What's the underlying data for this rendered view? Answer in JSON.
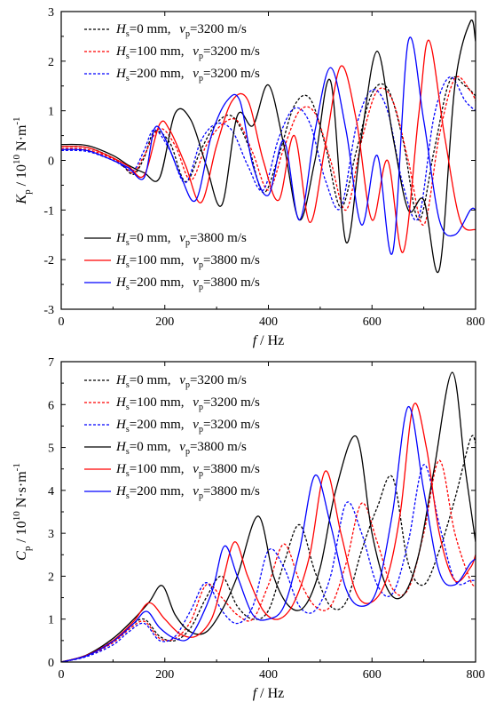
{
  "chart_data": [
    {
      "type": "line",
      "xlabel": "f / Hz",
      "ylabel": "K_p / 10^10 N·m^-1",
      "xlim": [
        0,
        800
      ],
      "ylim": [
        -3,
        3
      ],
      "xticks": [
        "0",
        "200",
        "400",
        "600",
        "800"
      ],
      "yticks": [
        "-3",
        "-2",
        "-1",
        "0",
        "1",
        "2",
        "3"
      ],
      "grid": false,
      "legend": [
        "top-left",
        "bottom-left"
      ],
      "series": [
        {
          "name": "H_s=0 mm, v_p=3200 m/s",
          "color": "#000000",
          "dash": "dashed",
          "x": [
            0,
            50,
            100,
            120,
            140,
            160,
            180,
            210,
            240,
            270,
            300,
            330,
            360,
            390,
            420,
            450,
            480,
            510,
            540,
            570,
            600,
            630,
            660,
            690,
            720,
            750,
            780,
            800
          ],
          "y": [
            0.28,
            0.26,
            0.05,
            -0.12,
            -0.28,
            0.05,
            0.58,
            0.35,
            -0.43,
            0.22,
            0.75,
            0.89,
            0.33,
            -0.65,
            0.1,
            1.1,
            1.25,
            0.3,
            -0.95,
            0.2,
            1.35,
            1.45,
            0.4,
            -1.2,
            0.2,
            1.6,
            1.5,
            1.3
          ]
        },
        {
          "name": "H_s=100 mm, v_p=3200 m/s",
          "color": "#ff0000",
          "dash": "dashed",
          "x": [
            0,
            50,
            100,
            120,
            140,
            160,
            190,
            220,
            250,
            280,
            310,
            340,
            370,
            400,
            430,
            460,
            490,
            520,
            550,
            580,
            610,
            640,
            670,
            700,
            730,
            760,
            790,
            800
          ],
          "y": [
            0.24,
            0.22,
            0.03,
            -0.1,
            -0.25,
            0.1,
            0.64,
            0.3,
            -0.4,
            0.3,
            0.72,
            0.8,
            0.15,
            -0.6,
            0.25,
            1.0,
            0.95,
            0.0,
            -1.0,
            0.4,
            1.4,
            1.2,
            0.0,
            -1.3,
            0.5,
            1.65,
            1.4,
            1.2
          ]
        },
        {
          "name": "H_s=200 mm, v_p=3200 m/s",
          "color": "#0000ff",
          "dash": "dashed",
          "x": [
            0,
            50,
            100,
            120,
            140,
            160,
            180,
            210,
            240,
            270,
            300,
            330,
            360,
            390,
            420,
            450,
            480,
            510,
            540,
            570,
            600,
            630,
            660,
            690,
            720,
            750,
            780,
            800
          ],
          "y": [
            0.2,
            0.18,
            0.0,
            -0.12,
            -0.2,
            0.2,
            0.62,
            0.2,
            -0.45,
            0.4,
            0.74,
            0.6,
            -0.1,
            -0.6,
            0.45,
            1.05,
            0.75,
            -0.4,
            -0.95,
            0.7,
            1.42,
            1.0,
            -0.5,
            -1.15,
            0.9,
            1.68,
            1.2,
            1.0
          ]
        },
        {
          "name": "H_s=0 mm, v_p=3800 m/s",
          "color": "#000000",
          "dash": "solid",
          "x": [
            0,
            50,
            100,
            130,
            160,
            190,
            220,
            250,
            280,
            310,
            340,
            370,
            400,
            430,
            460,
            490,
            520,
            550,
            580,
            610,
            640,
            670,
            700,
            730,
            760,
            790,
            800
          ],
          "y": [
            0.32,
            0.3,
            0.1,
            -0.1,
            -0.25,
            -0.35,
            0.95,
            0.82,
            -0.1,
            -0.9,
            0.9,
            0.7,
            1.52,
            0.3,
            -1.2,
            0.0,
            1.6,
            -1.65,
            0.5,
            2.2,
            0.5,
            -1.0,
            -0.8,
            -2.2,
            1.5,
            2.8,
            2.4
          ]
        },
        {
          "name": "H_s=100 mm, v_p=3800 m/s",
          "color": "#ff0000",
          "dash": "solid",
          "x": [
            0,
            50,
            100,
            130,
            160,
            190,
            210,
            240,
            270,
            300,
            330,
            360,
            390,
            420,
            450,
            480,
            510,
            540,
            570,
            600,
            630,
            660,
            690,
            710,
            740,
            770,
            800
          ],
          "y": [
            0.28,
            0.26,
            0.05,
            -0.12,
            -0.3,
            0.73,
            0.6,
            -0.1,
            -0.85,
            0.3,
            1.2,
            1.22,
            0.0,
            -0.8,
            0.5,
            -1.25,
            0.3,
            1.9,
            0.8,
            -1.2,
            0.0,
            -1.85,
            0.9,
            2.42,
            0.5,
            -1.2,
            -1.4
          ]
        },
        {
          "name": "H_s=200 mm, v_p=3800 m/s",
          "color": "#0000ff",
          "dash": "solid",
          "x": [
            0,
            50,
            100,
            130,
            160,
            180,
            200,
            230,
            260,
            290,
            320,
            345,
            370,
            400,
            430,
            460,
            490,
            520,
            550,
            580,
            610,
            640,
            670,
            700,
            730,
            760,
            790,
            800
          ],
          "y": [
            0.22,
            0.2,
            0.0,
            -0.15,
            -0.35,
            0.64,
            0.45,
            -0.3,
            -0.8,
            0.5,
            1.2,
            1.2,
            -0.1,
            -0.7,
            0.4,
            -1.2,
            0.6,
            1.87,
            0.6,
            -1.3,
            0.1,
            -1.85,
            2.4,
            0.8,
            -1.2,
            -1.5,
            -1.0,
            -1.0
          ]
        }
      ]
    },
    {
      "type": "line",
      "xlabel": "f / Hz",
      "ylabel": "C_p / 10^10 N·s·m^-1",
      "xlim": [
        0,
        800
      ],
      "ylim": [
        0,
        7
      ],
      "xticks": [
        "0",
        "200",
        "400",
        "600",
        "800"
      ],
      "yticks": [
        "0",
        "1",
        "2",
        "3",
        "4",
        "5",
        "6",
        "7"
      ],
      "grid": false,
      "legend": "top-left",
      "series": [
        {
          "name": "H_s=0 mm, v_p=3200 m/s",
          "color": "#000000",
          "dash": "dashed",
          "x": [
            0,
            50,
            100,
            130,
            160,
            190,
            220,
            250,
            280,
            310,
            340,
            370,
            400,
            430,
            460,
            490,
            520,
            550,
            580,
            610,
            640,
            670,
            700,
            730,
            760,
            790,
            800
          ],
          "y": [
            0.0,
            0.15,
            0.5,
            0.8,
            1.0,
            0.6,
            0.5,
            0.8,
            1.5,
            2.0,
            1.3,
            1.0,
            1.2,
            2.3,
            3.2,
            2.1,
            1.3,
            1.4,
            2.6,
            3.6,
            4.3,
            2.3,
            1.8,
            2.6,
            3.8,
            5.2,
            5.1
          ]
        },
        {
          "name": "H_s=100 mm, v_p=3200 m/s",
          "color": "#ff0000",
          "dash": "dashed",
          "x": [
            0,
            50,
            100,
            130,
            160,
            190,
            220,
            250,
            280,
            310,
            340,
            370,
            400,
            430,
            460,
            490,
            520,
            550,
            580,
            610,
            640,
            670,
            700,
            730,
            760,
            790,
            800
          ],
          "y": [
            0.0,
            0.14,
            0.45,
            0.75,
            0.95,
            0.55,
            0.55,
            0.95,
            1.8,
            1.5,
            1.1,
            1.0,
            1.8,
            2.75,
            1.9,
            1.3,
            1.3,
            2.3,
            3.7,
            2.8,
            1.7,
            1.7,
            3.0,
            4.7,
            3.0,
            1.9,
            1.8
          ]
        },
        {
          "name": "H_s=200 mm, v_p=3200 m/s",
          "color": "#0000ff",
          "dash": "dashed",
          "x": [
            0,
            50,
            100,
            130,
            160,
            190,
            220,
            250,
            280,
            310,
            340,
            370,
            400,
            430,
            460,
            490,
            520,
            550,
            580,
            610,
            640,
            670,
            700,
            730,
            760,
            790,
            800
          ],
          "y": [
            0.0,
            0.13,
            0.4,
            0.7,
            0.9,
            0.5,
            0.6,
            1.2,
            1.85,
            1.2,
            0.9,
            1.3,
            2.6,
            2.2,
            1.3,
            1.2,
            2.0,
            3.7,
            3.0,
            1.8,
            1.6,
            2.8,
            4.6,
            3.2,
            1.9,
            1.9,
            1.9
          ]
        },
        {
          "name": "H_s=0 mm, v_p=3800 m/s",
          "color": "#000000",
          "dash": "solid",
          "x": [
            0,
            50,
            100,
            140,
            170,
            195,
            220,
            250,
            280,
            310,
            340,
            380,
            410,
            440,
            470,
            500,
            530,
            570,
            600,
            630,
            660,
            690,
            720,
            755,
            780,
            800
          ],
          "y": [
            0.0,
            0.17,
            0.55,
            1.0,
            1.4,
            1.78,
            1.1,
            0.7,
            0.7,
            1.2,
            2.0,
            3.4,
            2.0,
            1.3,
            1.3,
            2.2,
            4.0,
            5.25,
            3.0,
            1.7,
            1.55,
            2.5,
            4.5,
            6.75,
            4.5,
            2.8
          ]
        },
        {
          "name": "H_s=100 mm, v_p=3800 m/s",
          "color": "#ff0000",
          "dash": "solid",
          "x": [
            0,
            50,
            100,
            140,
            170,
            200,
            230,
            260,
            290,
            310,
            335,
            360,
            390,
            420,
            450,
            480,
            510,
            540,
            570,
            600,
            630,
            655,
            680,
            705,
            730,
            760,
            790,
            800
          ],
          "y": [
            0.0,
            0.16,
            0.5,
            0.95,
            1.38,
            1.0,
            0.65,
            0.6,
            1.0,
            1.8,
            2.8,
            2.0,
            1.2,
            1.0,
            1.4,
            2.5,
            4.45,
            3.0,
            1.6,
            1.4,
            2.0,
            3.5,
            5.98,
            5.0,
            3.0,
            1.9,
            2.2,
            2.5
          ]
        },
        {
          "name": "H_s=200 mm, v_p=3800 m/s",
          "color": "#0000ff",
          "dash": "solid",
          "x": [
            0,
            50,
            100,
            140,
            165,
            190,
            220,
            250,
            290,
            315,
            340,
            370,
            400,
            430,
            460,
            490,
            520,
            550,
            580,
            610,
            640,
            670,
            700,
            730,
            760,
            790,
            800
          ],
          "y": [
            0.0,
            0.15,
            0.48,
            0.9,
            1.18,
            0.8,
            0.55,
            0.6,
            1.6,
            2.7,
            2.0,
            1.1,
            1.0,
            1.3,
            2.6,
            4.35,
            3.2,
            1.7,
            1.3,
            1.7,
            3.5,
            5.95,
            4.0,
            2.1,
            1.8,
            2.3,
            2.4
          ]
        }
      ]
    }
  ]
}
